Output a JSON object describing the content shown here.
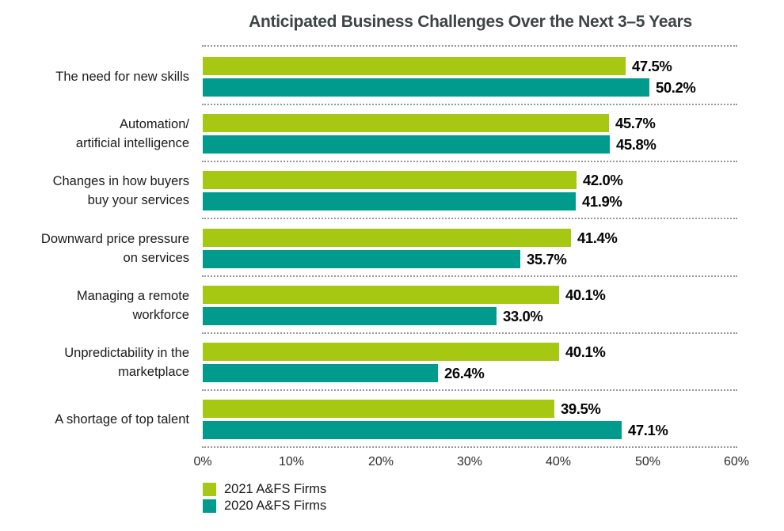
{
  "chart_data": {
    "type": "bar",
    "orientation": "horizontal",
    "title": "Anticipated Business Challenges Over the Next 3–5 Years",
    "categories": [
      "The need for new skills",
      "Automation/ artificial intelligence",
      "Changes in how buyers buy your services",
      "Downward price pressure on services",
      "Managing a remote workforce",
      "Unpredictability in the marketplace",
      "A shortage of top talent"
    ],
    "category_lines": [
      [
        "The need for new skills"
      ],
      [
        "Automation/",
        "artificial intelligence"
      ],
      [
        "Changes in how buyers",
        "buy your services"
      ],
      [
        "Downward price pressure",
        "on services"
      ],
      [
        "Managing a remote",
        "workforce"
      ],
      [
        "Unpredictability in the",
        "marketplace"
      ],
      [
        "A shortage of top talent"
      ]
    ],
    "series": [
      {
        "name": "2021 A&FS Firms",
        "color": "#a7c813",
        "values": [
          47.5,
          45.7,
          42.0,
          41.4,
          40.1,
          40.1,
          39.5
        ]
      },
      {
        "name": "2020 A&FS Firms",
        "color": "#009b8c",
        "values": [
          50.2,
          45.8,
          41.9,
          35.7,
          33.0,
          26.4,
          47.1
        ]
      }
    ],
    "value_labels": [
      [
        "47.5%",
        "45.7%",
        "42.0%",
        "41.4%",
        "40.1%",
        "40.1%",
        "39.5%"
      ],
      [
        "50.2%",
        "45.8%",
        "41.9%",
        "35.7%",
        "33.0%",
        "26.4%",
        "47.1%"
      ]
    ],
    "xlim": [
      0,
      60
    ],
    "x_ticks": [
      "0%",
      "10%",
      "20%",
      "30%",
      "40%",
      "50%",
      "60%"
    ],
    "legend": [
      {
        "label": "2021 A&FS Firms",
        "color": "#a7c813"
      },
      {
        "label": "2020 A&FS Firms",
        "color": "#009b8c"
      }
    ],
    "grid": "dotted horizontal separators between category groups",
    "separator_color": "#979797"
  }
}
